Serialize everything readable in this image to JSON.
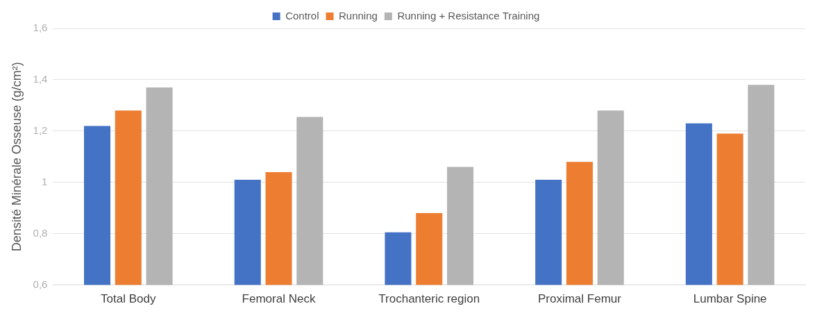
{
  "chart_data": {
    "type": "bar",
    "y_label": "Densité Minérale Osseuse (g/cm²)",
    "categories": [
      "Total Body",
      "Femoral Neck",
      "Trochanteric region",
      "Proximal Femur",
      "Lumbar Spine"
    ],
    "series": [
      {
        "name": "Control",
        "color": "#4472c4",
        "values": [
          1.22,
          1.01,
          0.805,
          1.01,
          1.23
        ]
      },
      {
        "name": "Running",
        "color": "#ed7d31",
        "values": [
          1.28,
          1.04,
          0.88,
          1.08,
          1.19
        ]
      },
      {
        "name": "Running + Resistance Training",
        "color": "#b4b4b4",
        "values": [
          1.37,
          1.255,
          1.06,
          1.28,
          1.38
        ]
      }
    ],
    "ylim": [
      0.6,
      1.6
    ],
    "yticks": [
      {
        "value": 0.6,
        "label": "0,6"
      },
      {
        "value": 0.8,
        "label": "0,8"
      },
      1,
      {
        "value": 1.2,
        "label": "1,2"
      },
      {
        "value": 1.4,
        "label": "1,4"
      },
      {
        "value": 1.6,
        "label": "1,6"
      }
    ],
    "grid": true,
    "legend": "top"
  }
}
